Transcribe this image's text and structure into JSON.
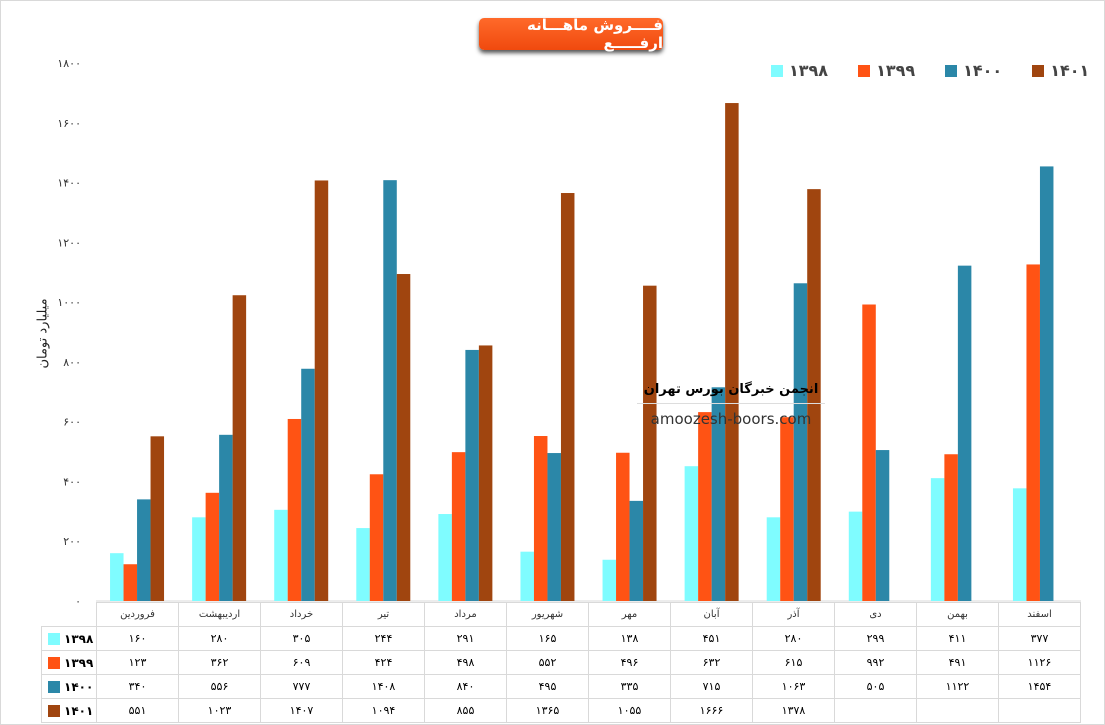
{
  "title": "فــــروش ماهـــانه ارفـــــع",
  "watermark": {
    "line1": "انجمن خبرگان بورس تهران",
    "line2": "amoozesh-boors.com"
  },
  "chart_data": {
    "type": "bar",
    "title": "فــــروش ماهـــانه ارفـــــع",
    "ylabel": "میلیارد تومان",
    "xlabel": "",
    "ylim": [
      0,
      1800
    ],
    "yticks": [
      0,
      200,
      400,
      600,
      800,
      1000,
      1200,
      1400,
      1600,
      1800
    ],
    "ytick_labels": [
      "۰",
      "۲۰۰",
      "۴۰۰",
      "۶۰۰",
      "۸۰۰",
      "۱۰۰۰",
      "۱۲۰۰",
      "۱۴۰۰",
      "۱۶۰۰",
      "۱۸۰۰"
    ],
    "legend_position": "top-right",
    "categories": [
      "فروردین",
      "اردیبهشت",
      "خرداد",
      "تیر",
      "مرداد",
      "شهریور",
      "مهر",
      "آبان",
      "آذر",
      "دی",
      "بهمن",
      "اسفند"
    ],
    "series": [
      {
        "name": "۱۳۹۸",
        "color": "#7ffcff",
        "values": [
          160,
          280,
          305,
          244,
          291,
          165,
          138,
          451,
          280,
          299,
          411,
          377
        ]
      },
      {
        "name": "۱۳۹۹",
        "color": "#ff5314",
        "values": [
          123,
          362,
          609,
          424,
          498,
          552,
          496,
          632,
          615,
          992,
          491,
          1126
        ]
      },
      {
        "name": "۱۴۰۰",
        "color": "#2b87a8",
        "values": [
          340,
          556,
          777,
          1408,
          840,
          495,
          335,
          715,
          1063,
          505,
          1122,
          1454
        ]
      },
      {
        "name": "۱۴۰۱",
        "color": "#a0450f",
        "values": [
          551,
          1023,
          1407,
          1094,
          855,
          1365,
          1055,
          1666,
          1378,
          null,
          null,
          null
        ]
      }
    ]
  }
}
